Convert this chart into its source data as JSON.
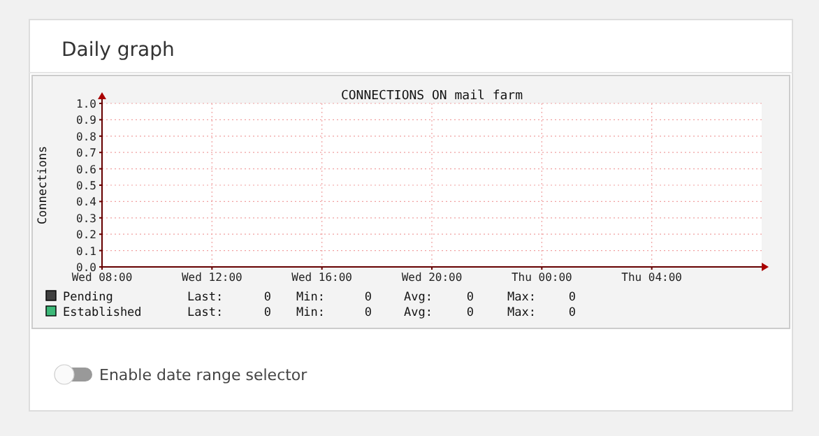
{
  "chart_data": {
    "type": "line",
    "title": "CONNECTIONS ON mail farm",
    "ylabel": "Connections",
    "categories": [
      "Wed 08:00",
      null,
      null,
      null,
      "Wed 12:00",
      null,
      null,
      null,
      "Wed 16:00",
      null,
      null,
      null,
      "Wed 20:00",
      null,
      null,
      null,
      "Thu 00:00",
      null,
      null,
      null,
      "Thu 04:00",
      null,
      null,
      null,
      null
    ],
    "series": [
      {
        "name": "Pending",
        "color": "#404040",
        "values": [
          null,
          null,
          null,
          null,
          null,
          null,
          null,
          null,
          null,
          null,
          null,
          null,
          null,
          null,
          null,
          null,
          null,
          null,
          null,
          null,
          null,
          null,
          null,
          null,
          null
        ]
      },
      {
        "name": "Established",
        "color": "#3cb878",
        "values": [
          null,
          null,
          null,
          null,
          null,
          null,
          null,
          null,
          null,
          null,
          null,
          null,
          null,
          null,
          null,
          null,
          null,
          null,
          null,
          null,
          null,
          null,
          null,
          null,
          null
        ]
      }
    ],
    "ylim": [
      0,
      1
    ],
    "yticks": [
      {
        "value": 0,
        "label": "0.0"
      },
      {
        "value": 0.1,
        "label": "0.1"
      },
      {
        "value": 0.2,
        "label": "0.2"
      },
      {
        "value": 0.3,
        "label": "0.3"
      },
      {
        "value": 0.4,
        "label": "0.4"
      },
      {
        "value": 0.5,
        "label": "0.5"
      },
      {
        "value": 0.6,
        "label": "0.6"
      },
      {
        "value": 0.7,
        "label": "0.7"
      },
      {
        "value": 0.8,
        "label": "0.8"
      },
      {
        "value": 0.9,
        "label": "0.9"
      },
      {
        "value": 1,
        "label": "1.0"
      }
    ],
    "grid": true,
    "legend": "bottom",
    "annotations": [
      "Daily graph",
      "Enable date range selector",
      "Last: 0",
      "Min: 0",
      "Avg: 0",
      "Max: 0",
      "Last: 0",
      "Min: 0",
      "Avg: 0",
      "Max: 0"
    ]
  }
}
